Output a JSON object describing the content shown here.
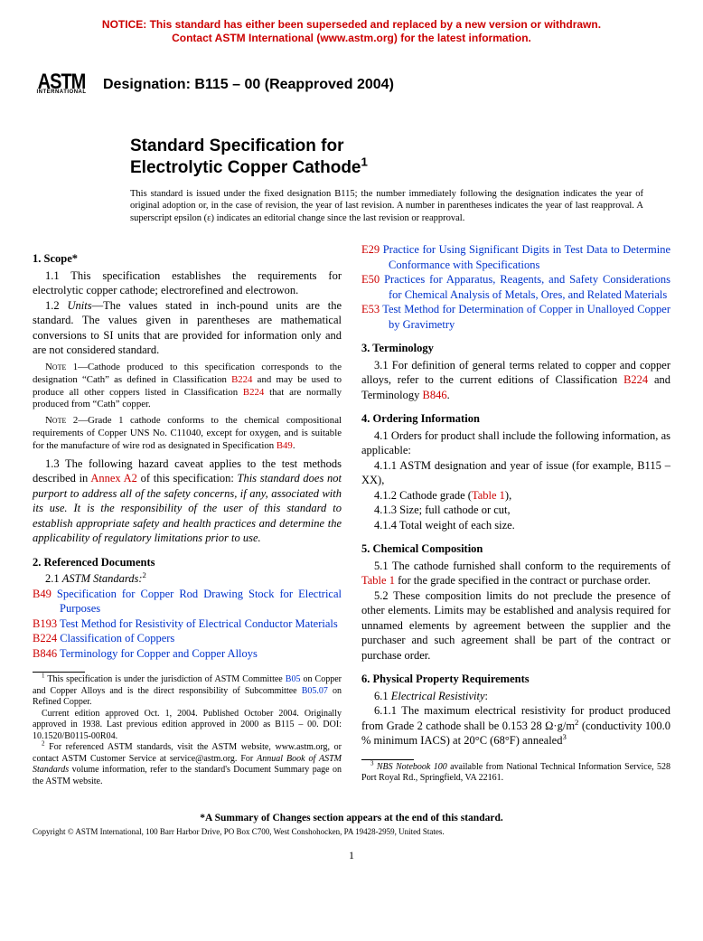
{
  "colors": {
    "notice": "#cc0000",
    "link_red": "#cc0000",
    "link_blue": "#0033cc",
    "text": "#000000",
    "background": "#ffffff"
  },
  "notice": {
    "line1": "NOTICE: This standard has either been superseded and replaced by a new version or withdrawn.",
    "line2": "Contact ASTM International (www.astm.org) for the latest information."
  },
  "logo": {
    "top": "ASTM",
    "bottom": "INTERNATIONAL"
  },
  "designation": "Designation: B115 – 00 (Reapproved 2004)",
  "title": {
    "line1": "Standard Specification for",
    "line2": "Electrolytic Copper Cathode",
    "sup": "1"
  },
  "issuance": "This standard is issued under the fixed designation B115; the number immediately following the designation indicates the year of original adoption or, in the case of revision, the year of last revision. A number in parentheses indicates the year of last reapproval. A superscript epsilon (ε) indicates an editorial change since the last revision or reapproval.",
  "s1": {
    "head": "1.  Scope*",
    "p11": "1.1 This specification establishes the requirements for electrolytic copper cathode; electrorefined and electrowon.",
    "p12_a": "1.2 ",
    "p12_units": "Units",
    "p12_b": "—The values stated in inch-pound units are the standard. The values given in parentheses are mathematical conversions to SI units that are provided for information only and are not considered standard.",
    "note1_label": "Note 1",
    "note1_a": "—Cathode produced to this specification corresponds to the designation “Cath” as defined in Classification ",
    "note1_link1": "B224",
    "note1_b": " and may be used to produce all other coppers listed in Classification ",
    "note1_link2": "B224",
    "note1_c": " that are normally produced from “Cath” copper.",
    "note2_label": "Note 2",
    "note2_a": "—Grade 1 cathode conforms to the chemical compositional requirements of Copper UNS No. C11040, except for oxygen, and is suitable for the manufacture of wire rod as designated in Specification ",
    "note2_link": "B49",
    "note2_b": ".",
    "p13_a": "1.3 The following hazard caveat applies to the test methods described in ",
    "p13_link": "Annex A2",
    "p13_b": " of this specification: ",
    "p13_ital": "This standard does not purport to address all of the safety concerns, if any, associated with its use. It is the responsibility of the user of this standard to establish appropriate safety and health practices and determine the applicability of regulatory limitations prior to use."
  },
  "s2": {
    "head": "2.  Referenced Documents",
    "p21_a": "2.1 ",
    "p21_ital": "ASTM Standards:",
    "p21_sup": "2",
    "refs": [
      {
        "code": "B49",
        "text": "Specification for Copper Rod Drawing Stock for Electrical Purposes"
      },
      {
        "code": "B193",
        "text": "Test Method for Resistivity of Electrical Conductor Materials"
      },
      {
        "code": "B224",
        "text": "Classification of Coppers"
      },
      {
        "code": "B846",
        "text": "Terminology for Copper and Copper Alloys"
      }
    ]
  },
  "rcol_refs": [
    {
      "code": "E29",
      "text": "Practice for Using Significant Digits in Test Data to Determine Conformance with Specifications"
    },
    {
      "code": "E50",
      "text": "Practices for Apparatus, Reagents, and Safety Considerations for Chemical Analysis of Metals, Ores, and Related Materials"
    },
    {
      "code": "E53",
      "text": "Test Method for Determination of Copper in Unalloyed Copper by Gravimetry"
    }
  ],
  "s3": {
    "head": "3.  Terminology",
    "p31_a": "3.1 For definition of general terms related to copper and copper alloys, refer to the current editions of Classification ",
    "p31_link1": "B224",
    "p31_b": " and Terminology ",
    "p31_link2": "B846",
    "p31_c": "."
  },
  "s4": {
    "head": "4.  Ordering Information",
    "p41": "4.1 Orders for product shall include the following information, as applicable:",
    "p411": "4.1.1 ASTM designation and year of issue (for example, B115 – XX),",
    "p412_a": "4.1.2 Cathode grade (",
    "p412_link": "Table 1",
    "p412_b": "),",
    "p413": "4.1.3 Size; full cathode or cut,",
    "p414": "4.1.4 Total weight of each size."
  },
  "s5": {
    "head": "5.  Chemical Composition",
    "p51_a": "5.1 The cathode furnished shall conform to the requirements of ",
    "p51_link": "Table 1",
    "p51_b": " for the grade specified in the contract or purchase order.",
    "p52": "5.2 These composition limits do not preclude the presence of other elements. Limits may be established and analysis required for unnamed elements by agreement between the supplier and the purchaser and such agreement shall be part of the contract or purchase order."
  },
  "s6": {
    "head": "6.  Physical Property Requirements",
    "p61_a": "6.1 ",
    "p61_ital": "Electrical Resistivity",
    "p61_b": ":",
    "p611_a": "6.1.1 The maximum electrical resistivity for product produced from Grade 2 cathode shall be 0.153 28 Ω·g/m",
    "p611_sup1": "2",
    "p611_b": " (conductivity 100.0 % minimum IACS) at 20°C (68°F) annealed",
    "p611_sup2": "3"
  },
  "footnotes_left": {
    "f1_a": " This specification is under the jurisdiction of ASTM Committee ",
    "f1_link1": "B05",
    "f1_b": " on Copper and Copper Alloys and is the direct responsibility of Subcommittee ",
    "f1_link2": "B05.07",
    "f1_c": " on Refined Copper.",
    "f1_d": "Current edition approved Oct. 1, 2004. Published October 2004. Originally approved in 1938. Last previous edition approved in 2000 as B115 – 00. DOI: 10.1520/B0115-00R04.",
    "f2_a": " For referenced ASTM standards, visit the ASTM website, www.astm.org, or contact ASTM Customer Service at service@astm.org. For ",
    "f2_ital": "Annual Book of ASTM Standards",
    "f2_b": " volume information, refer to the standard's Document Summary page on the ASTM website."
  },
  "footnotes_right": {
    "f3_a": " ",
    "f3_ital": "NBS Notebook 100",
    "f3_b": " available from National Technical Information Service, 528 Port Royal Rd., Springfield, VA 22161."
  },
  "summary": "*A Summary of Changes section appears at the end of this standard.",
  "copyright": "Copyright © ASTM International, 100 Barr Harbor Drive, PO Box C700, West Conshohocken, PA 19428-2959, United States.",
  "pagenum": "1"
}
